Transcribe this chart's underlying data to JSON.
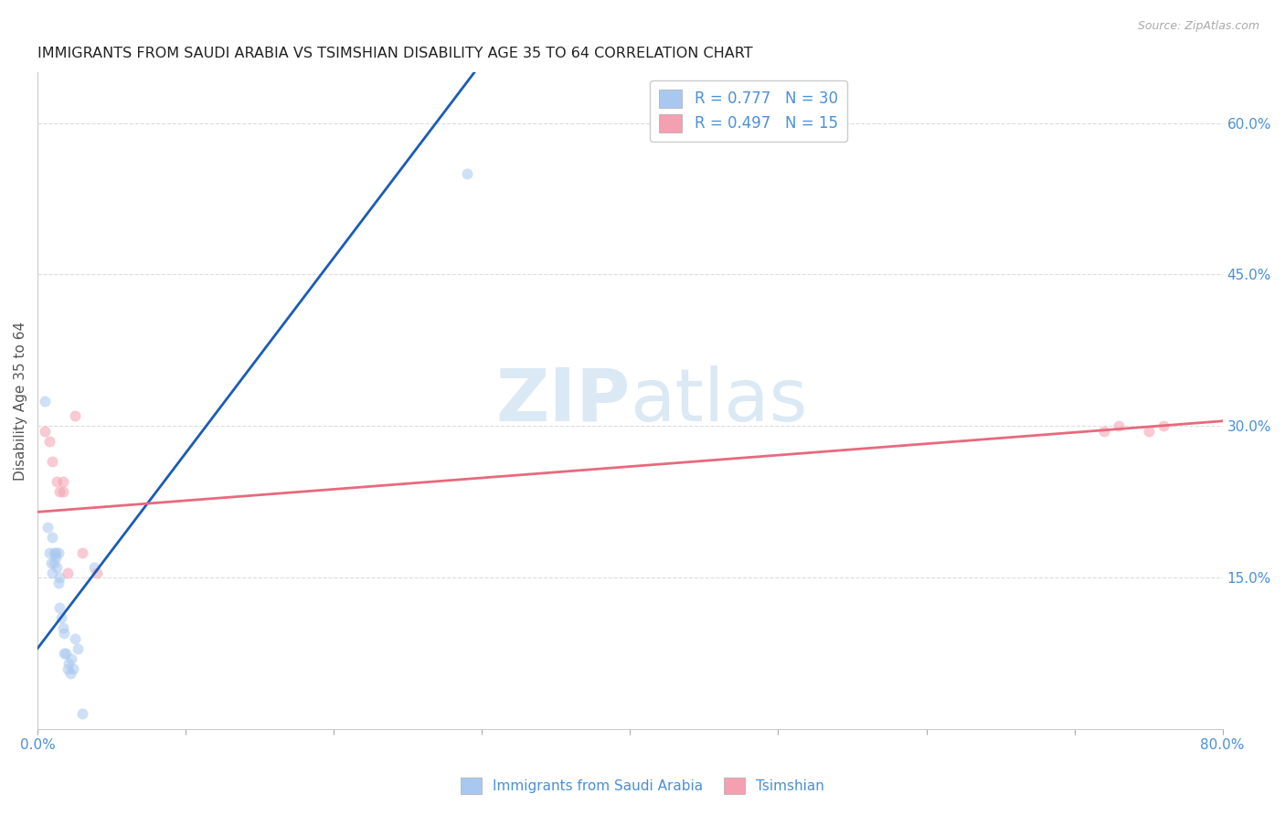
{
  "title": "IMMIGRANTS FROM SAUDI ARABIA VS TSIMSHIAN DISABILITY AGE 35 TO 64 CORRELATION CHART",
  "source": "Source: ZipAtlas.com",
  "label_color": "#4a90d9",
  "ylabel": "Disability Age 35 to 64",
  "xlim": [
    0.0,
    0.8
  ],
  "ylim": [
    0.0,
    0.65
  ],
  "xticks_show": [
    0.0,
    0.8
  ],
  "xticks_minor": [
    0.1,
    0.2,
    0.3,
    0.4,
    0.5,
    0.6,
    0.7
  ],
  "ytick_labels_right": [
    "60.0%",
    "45.0%",
    "30.0%",
    "15.0%"
  ],
  "ytick_vals_right": [
    0.6,
    0.45,
    0.3,
    0.15
  ],
  "watermark_zip": "ZIP",
  "watermark_atlas": "atlas",
  "legend_entries": [
    {
      "label": "R = 0.777   N = 30",
      "color": "#7fb3e8"
    },
    {
      "label": "R = 0.497   N = 15",
      "color": "#f4a0b0"
    }
  ],
  "blue_scatter_x": [
    0.005,
    0.007,
    0.008,
    0.009,
    0.01,
    0.01,
    0.011,
    0.011,
    0.012,
    0.012,
    0.013,
    0.014,
    0.014,
    0.015,
    0.015,
    0.016,
    0.017,
    0.018,
    0.018,
    0.019,
    0.02,
    0.021,
    0.022,
    0.023,
    0.024,
    0.025,
    0.027,
    0.03,
    0.038,
    0.29
  ],
  "blue_scatter_y": [
    0.325,
    0.2,
    0.175,
    0.165,
    0.155,
    0.19,
    0.175,
    0.165,
    0.17,
    0.175,
    0.16,
    0.175,
    0.145,
    0.15,
    0.12,
    0.11,
    0.1,
    0.095,
    0.075,
    0.075,
    0.06,
    0.065,
    0.055,
    0.07,
    0.06,
    0.09,
    0.08,
    0.015,
    0.16,
    0.55
  ],
  "pink_scatter_x": [
    0.005,
    0.008,
    0.01,
    0.013,
    0.015,
    0.017,
    0.017,
    0.02,
    0.025,
    0.03,
    0.04,
    0.72,
    0.73,
    0.75,
    0.76
  ],
  "pink_scatter_y": [
    0.295,
    0.285,
    0.265,
    0.245,
    0.235,
    0.245,
    0.235,
    0.155,
    0.31,
    0.175,
    0.155,
    0.295,
    0.3,
    0.295,
    0.3
  ],
  "blue_line_x": [
    0.0,
    0.3
  ],
  "blue_line_y": [
    0.08,
    0.66
  ],
  "pink_line_x": [
    0.0,
    0.8
  ],
  "pink_line_y": [
    0.215,
    0.305
  ],
  "scatter_size": 75,
  "scatter_alpha": 0.55,
  "line_color_blue": "#1a5cb5",
  "line_color_pink": "#e8697d",
  "scatter_color_blue": "#a8c8f0",
  "scatter_color_pink": "#f4a0b0",
  "bg_color": "#ffffff",
  "grid_color": "#dddddd",
  "title_fontsize": 11.5,
  "axis_label_fontsize": 11,
  "tick_fontsize": 11,
  "legend_fontsize": 12
}
